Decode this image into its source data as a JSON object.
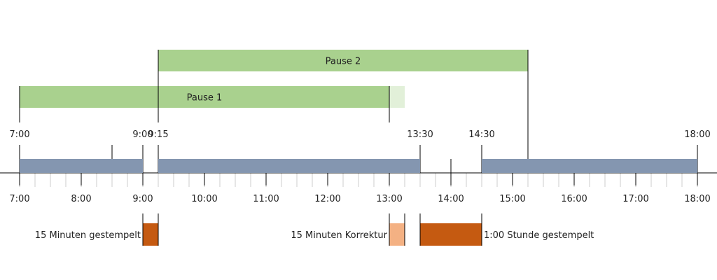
{
  "timeline": {
    "axis_labels": [
      "7:00",
      "8:00",
      "9:00",
      "10:00",
      "11:00",
      "12:00",
      "13:00",
      "14:00",
      "15:00",
      "16:00",
      "17:00",
      "18:00"
    ],
    "work_segments": [
      {
        "start": "7:00",
        "end": "9:00"
      },
      {
        "start": "9:15",
        "end": "13:30"
      },
      {
        "start": "14:30",
        "end": "18:00"
      }
    ],
    "segment_labels": [
      {
        "time": "7:00",
        "label": "7:00"
      },
      {
        "time": "9:00",
        "label": "9:00"
      },
      {
        "time": "9:15",
        "label": "9:15"
      },
      {
        "time": "13:30",
        "label": "13:30"
      },
      {
        "time": "14:30",
        "label": "14:30"
      },
      {
        "time": "18:00",
        "label": "18:00"
      }
    ],
    "colors": {
      "work": "#8496b0",
      "pause": "#a9d18e",
      "pause_light": "#e2f0d9",
      "stamped": "#c55a11",
      "correction": "#f4b183",
      "line": "#000000",
      "minor_tick": "#cccccc"
    }
  },
  "pauses": [
    {
      "label": "Pause 1",
      "start": "7:00",
      "end": "13:00",
      "extension_end": "13:15"
    },
    {
      "label": "Pause 2",
      "start": "9:15",
      "end": "15:15"
    }
  ],
  "bottom_blocks": [
    {
      "label": "15 Minuten gestempelt",
      "start": "9:00",
      "end": "9:15",
      "kind": "stamped",
      "label_side": "left"
    },
    {
      "label": "15 Minuten Korrektur",
      "start": "13:00",
      "end": "13:15",
      "kind": "correction",
      "label_side": "left"
    },
    {
      "label": "1:00 Stunde gestempelt",
      "start": "13:30",
      "end": "14:30",
      "kind": "stamped",
      "label_side": "right"
    }
  ]
}
